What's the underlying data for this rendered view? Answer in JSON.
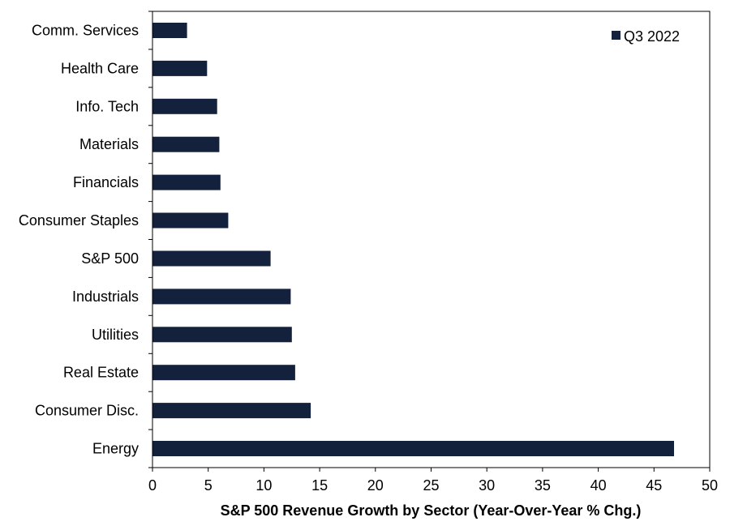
{
  "chart_data": {
    "type": "bar",
    "orientation": "horizontal",
    "categories": [
      "Comm. Services",
      "Health Care",
      "Info. Tech",
      "Materials",
      "Financials",
      "Consumer Staples",
      "S&P 500",
      "Industrials",
      "Utilities",
      "Real Estate",
      "Consumer Disc.",
      "Energy"
    ],
    "series": [
      {
        "name": "Q3 2022",
        "color": "#14213d",
        "values": [
          3.1,
          4.9,
          5.8,
          6.0,
          6.1,
          6.8,
          10.6,
          12.4,
          12.5,
          12.8,
          14.2,
          46.8
        ]
      }
    ],
    "xlabel": "S&P 500 Revenue Growth by Sector (Year-Over-Year % Chg.)",
    "xlim": [
      0,
      50
    ],
    "xticks": [
      0,
      5,
      10,
      15,
      20,
      25,
      30,
      35,
      40,
      45,
      50
    ],
    "grid": false,
    "legend_position": "top-right"
  }
}
